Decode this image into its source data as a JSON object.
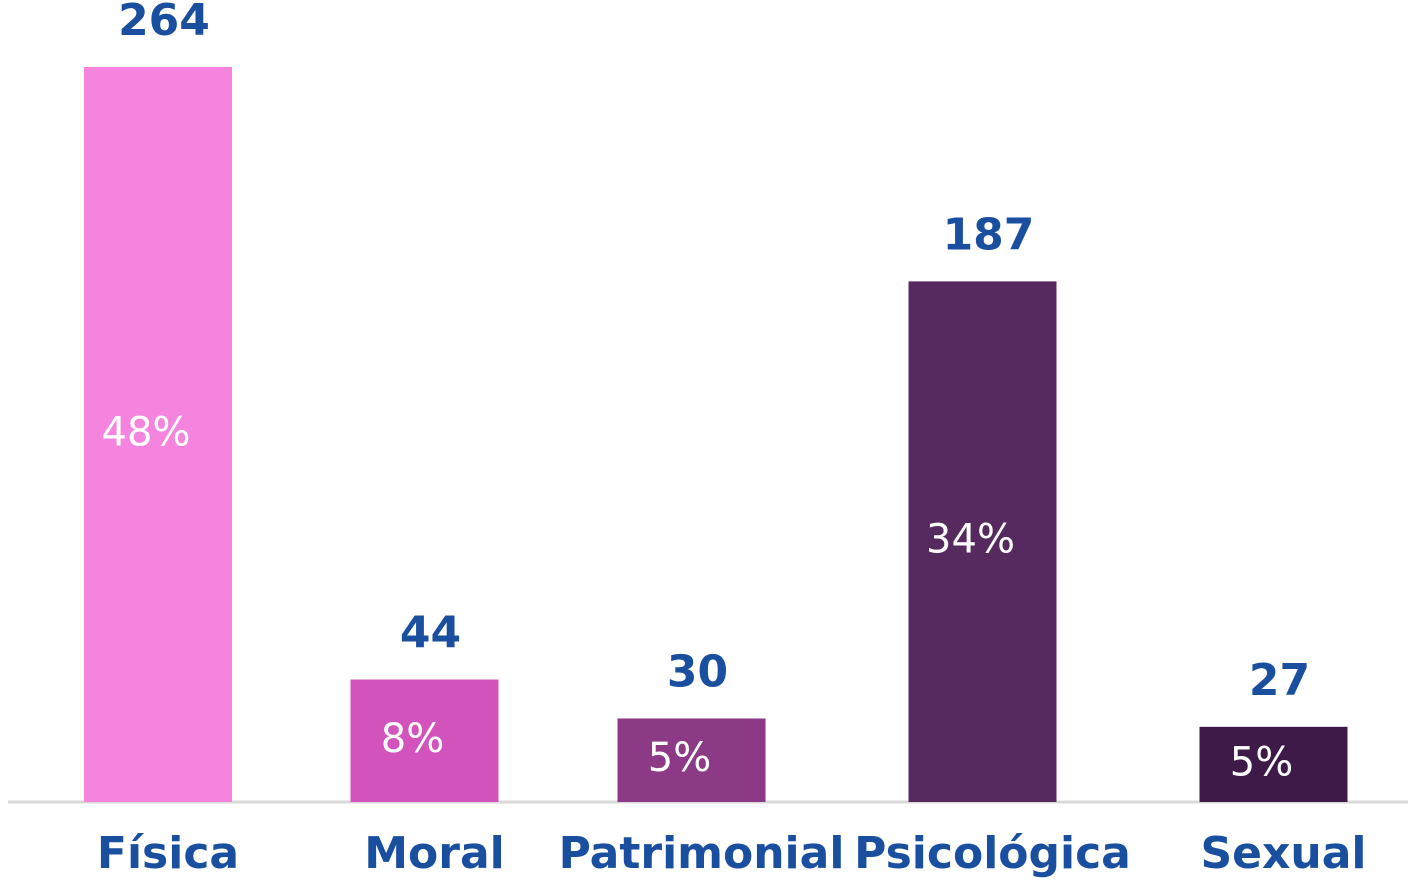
{
  "chart_data": {
    "type": "bar",
    "categories": [
      "Física",
      "Moral",
      "Patrimonial",
      "Psicológica",
      "Sexual"
    ],
    "values": [
      264,
      44,
      30,
      187,
      27
    ],
    "share_labels": [
      "48%",
      "8%",
      "5%",
      "34%",
      "5%"
    ],
    "colors": [
      "#f584de",
      "#d153bb",
      "#8c3a86",
      "#562a5e",
      "#3d1a47"
    ],
    "ylim": [
      0,
      264
    ]
  }
}
